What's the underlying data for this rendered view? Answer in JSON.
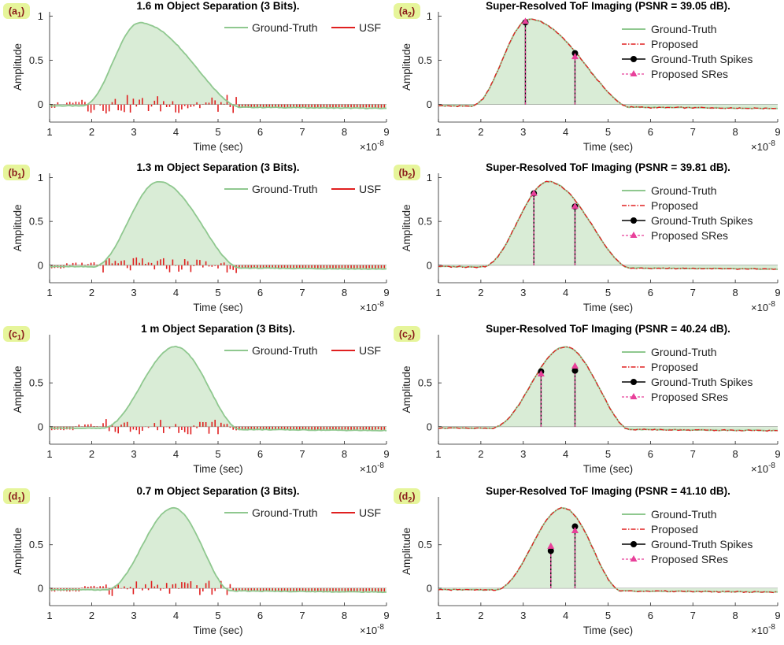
{
  "colors": {
    "ground_truth": "#8fc88f",
    "fill": "#d9ecd6",
    "usf": "#e02020",
    "proposed": "#e02020",
    "gt_spikes": "#000000",
    "sres": "#e8409a",
    "badge_bg": "#e6f59a",
    "badge_text": "#8a1a1a"
  },
  "chart_data": [
    {
      "panel": "a1",
      "badge": "a",
      "badge_sub": "1",
      "type": "line",
      "title": "1.6 m Object Separation (3 Bits).",
      "xlabel": "Time (sec)",
      "ylabel": "Amplitude",
      "x_exponent": "×10",
      "x_exponent_power": "-8",
      "xlim": [
        1,
        9
      ],
      "ylim": [
        -0.2,
        1.05
      ],
      "xticks": [
        "1",
        "2",
        "3",
        "4",
        "5",
        "6",
        "7",
        "8",
        "9"
      ],
      "yticks": [
        "0",
        "0.5",
        "1"
      ],
      "legend": [
        "Ground-Truth",
        "USF"
      ],
      "pulse": {
        "start": 1.75,
        "peak": 3.15,
        "end": 5.5,
        "amp": 0.95,
        "shoulder": 0.55
      },
      "usf_amp": 0.12,
      "spikes": []
    },
    {
      "panel": "a2",
      "badge": "a",
      "badge_sub": "2",
      "type": "line",
      "title": "Super-Resolved ToF Imaging (PSNR = 39.05 dB).",
      "xlabel": "Time (sec)",
      "ylabel": "Amplitude",
      "x_exponent": "×10",
      "x_exponent_power": "-8",
      "xlim": [
        1,
        9
      ],
      "ylim": [
        -0.2,
        1.05
      ],
      "xticks": [
        "1",
        "2",
        "3",
        "4",
        "5",
        "6",
        "7",
        "8",
        "9"
      ],
      "yticks": [
        "0",
        "0.5",
        "1"
      ],
      "legend": [
        "Ground-Truth",
        "Proposed",
        "Ground-Truth Spikes",
        "Proposed SRes"
      ],
      "pulse": {
        "start": 1.75,
        "peak": 3.15,
        "end": 5.5,
        "amp": 0.99,
        "shoulder": 0.55
      },
      "spikes": [
        {
          "x": 3.05,
          "gt": 0.93,
          "sres": 0.94
        },
        {
          "x": 4.22,
          "gt": 0.58,
          "sres": 0.54
        }
      ]
    },
    {
      "panel": "b1",
      "badge": "b",
      "badge_sub": "1",
      "type": "line",
      "title": "1.3 m Object Separation (3 Bits).",
      "xlabel": "Time (sec)",
      "ylabel": "Amplitude",
      "x_exponent": "×10",
      "x_exponent_power": "-8",
      "xlim": [
        1,
        9
      ],
      "ylim": [
        -0.2,
        1.05
      ],
      "xticks": [
        "1",
        "2",
        "3",
        "4",
        "5",
        "6",
        "7",
        "8",
        "9"
      ],
      "yticks": [
        "0",
        "0.5",
        "1"
      ],
      "legend": [
        "Ground-Truth",
        "USF"
      ],
      "pulse": {
        "start": 2.0,
        "peak": 3.6,
        "end": 5.5,
        "amp": 0.98,
        "shoulder": 0.65
      },
      "usf_amp": 0.1,
      "spikes": []
    },
    {
      "panel": "b2",
      "badge": "b",
      "badge_sub": "2",
      "type": "line",
      "title": "Super-Resolved ToF Imaging (PSNR = 39.81 dB).",
      "xlabel": "Time (sec)",
      "ylabel": "Amplitude",
      "x_exponent": "×10",
      "x_exponent_power": "-8",
      "xlim": [
        1,
        9
      ],
      "ylim": [
        -0.2,
        1.05
      ],
      "xticks": [
        "1",
        "2",
        "3",
        "4",
        "5",
        "6",
        "7",
        "8",
        "9"
      ],
      "yticks": [
        "0",
        "0.5",
        "1"
      ],
      "legend": [
        "Ground-Truth",
        "Proposed",
        "Ground-Truth Spikes",
        "Proposed SRes"
      ],
      "pulse": {
        "start": 2.0,
        "peak": 3.6,
        "end": 5.5,
        "amp": 0.98,
        "shoulder": 0.65
      },
      "spikes": [
        {
          "x": 3.25,
          "gt": 0.82,
          "sres": 0.82
        },
        {
          "x": 4.22,
          "gt": 0.67,
          "sres": 0.67
        }
      ]
    },
    {
      "panel": "c1",
      "badge": "c",
      "badge_sub": "1",
      "type": "line",
      "title": "1 m Object Separation (3 Bits).",
      "xlabel": "Time (sec)",
      "ylabel": "Amplitude",
      "x_exponent": "×10",
      "x_exponent_power": "-8",
      "xlim": [
        1,
        9
      ],
      "ylim": [
        -0.2,
        1.05
      ],
      "xticks": [
        "1",
        "2",
        "3",
        "4",
        "5",
        "6",
        "7",
        "8",
        "9"
      ],
      "yticks": [
        "0",
        "0.5"
      ],
      "legend": [
        "Ground-Truth",
        "USF"
      ],
      "pulse": {
        "start": 2.2,
        "peak": 4.0,
        "end": 5.5,
        "amp": 0.94,
        "shoulder": 0.7
      },
      "usf_amp": 0.1,
      "spikes": []
    },
    {
      "panel": "c2",
      "badge": "c",
      "badge_sub": "2",
      "type": "line",
      "title": "Super-Resolved ToF Imaging (PSNR = 40.24 dB).",
      "xlabel": "Time (sec)",
      "ylabel": "Amplitude",
      "x_exponent": "×10",
      "x_exponent_power": "-8",
      "xlim": [
        1,
        9
      ],
      "ylim": [
        -0.2,
        1.05
      ],
      "xticks": [
        "1",
        "2",
        "3",
        "4",
        "5",
        "6",
        "7",
        "8",
        "9"
      ],
      "yticks": [
        "0",
        "0.5"
      ],
      "legend": [
        "Ground-Truth",
        "Proposed",
        "Ground-Truth Spikes",
        "Proposed SRes"
      ],
      "pulse": {
        "start": 2.2,
        "peak": 4.0,
        "end": 5.5,
        "amp": 0.94,
        "shoulder": 0.7
      },
      "spikes": [
        {
          "x": 3.42,
          "gt": 0.63,
          "sres": 0.6
        },
        {
          "x": 4.22,
          "gt": 0.64,
          "sres": 0.69
        }
      ]
    },
    {
      "panel": "d1",
      "badge": "d",
      "badge_sub": "1",
      "type": "line",
      "title": "0.7 m Object Separation (3 Bits).",
      "xlabel": "Time (sec)",
      "ylabel": "Amplitude",
      "x_exponent": "×10",
      "x_exponent_power": "-8",
      "xlim": [
        1,
        9
      ],
      "ylim": [
        -0.2,
        1.05
      ],
      "xticks": [
        "1",
        "2",
        "3",
        "4",
        "5",
        "6",
        "7",
        "8",
        "9"
      ],
      "yticks": [
        "0",
        "0.5"
      ],
      "legend": [
        "Ground-Truth",
        "USF"
      ],
      "pulse": {
        "start": 2.3,
        "peak": 3.95,
        "end": 5.3,
        "amp": 0.95,
        "shoulder": 0.75
      },
      "usf_amp": 0.1,
      "spikes": []
    },
    {
      "panel": "d2",
      "badge": "d",
      "badge_sub": "2",
      "type": "line",
      "title": "Super-Resolved ToF Imaging (PSNR = 41.10 dB).",
      "xlabel": "Time (sec)",
      "ylabel": "Amplitude",
      "x_exponent": "×10",
      "x_exponent_power": "-8",
      "xlim": [
        1,
        9
      ],
      "ylim": [
        -0.2,
        1.05
      ],
      "xticks": [
        "1",
        "2",
        "3",
        "4",
        "5",
        "6",
        "7",
        "8",
        "9"
      ],
      "yticks": [
        "0",
        "0.5"
      ],
      "legend": [
        "Ground-Truth",
        "Proposed",
        "Ground-Truth Spikes",
        "Proposed SRes"
      ],
      "pulse": {
        "start": 2.3,
        "peak": 3.95,
        "end": 5.3,
        "amp": 0.95,
        "shoulder": 0.75
      },
      "spikes": [
        {
          "x": 3.65,
          "gt": 0.43,
          "sres": 0.48
        },
        {
          "x": 4.22,
          "gt": 0.71,
          "sres": 0.66
        }
      ]
    }
  ]
}
